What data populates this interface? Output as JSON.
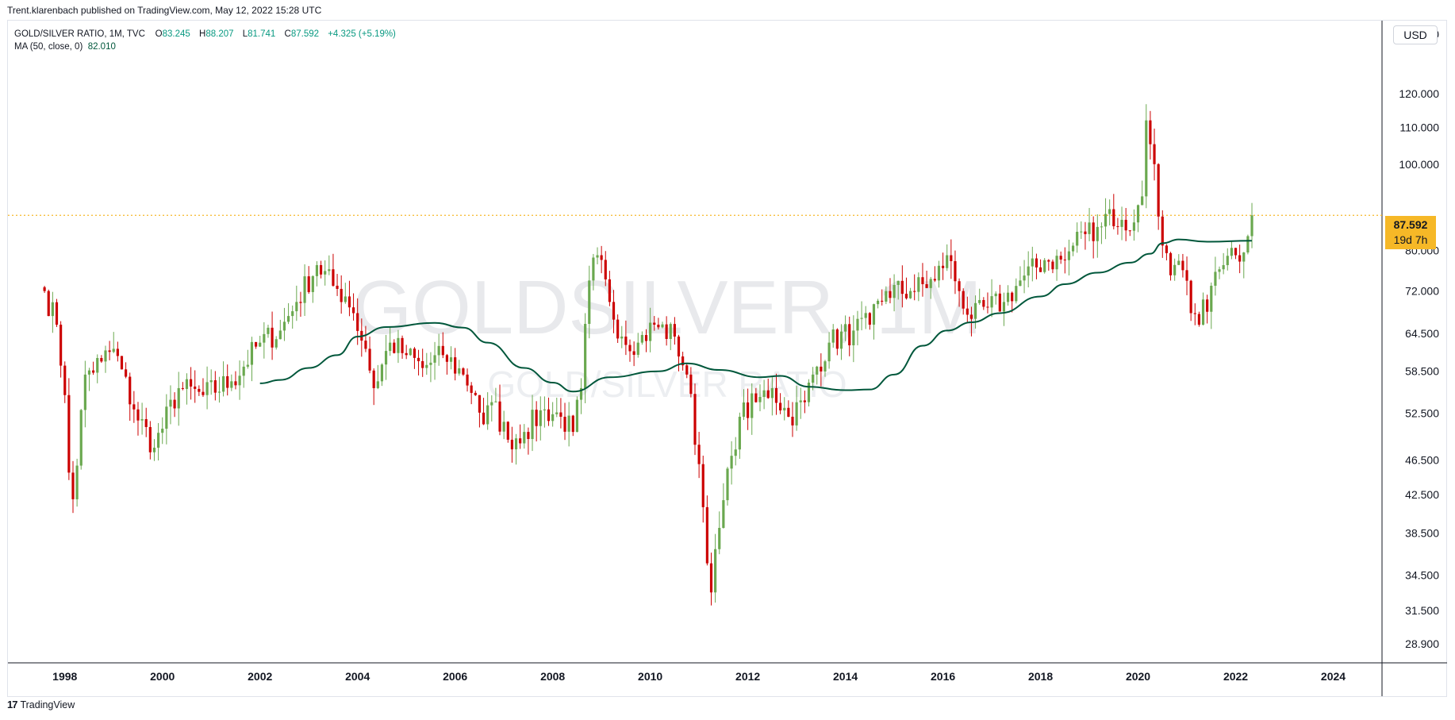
{
  "header": {
    "published": "Trent.klarenbach published on TradingView.com, May 12, 2022 15:28 UTC"
  },
  "legend": {
    "symbol": "GOLD/SILVER RATIO, 1M, TVC",
    "open_label": "O",
    "open": "83.245",
    "high_label": "H",
    "high": "88.207",
    "low_label": "L",
    "low": "81.741",
    "close_label": "C",
    "close": "87.592",
    "change": "+4.325 (+5.19%)",
    "ma_label": "MA (50, close, 0)",
    "ma_value": "82.010"
  },
  "currency_button": "USD",
  "last_price": {
    "value": "87.592",
    "countdown": "19d 7h"
  },
  "watermark": {
    "main": "GOLDSILVER, 1M",
    "sub": "GOLD/SILVER RATIO"
  },
  "footer": {
    "brand": "TradingView",
    "logo": "17"
  },
  "colors": {
    "up": "#6aa84f",
    "down": "#cc0000",
    "ma": "#00573b",
    "price_line": "#f6b827",
    "grid_border": "#e0e3eb"
  },
  "chart_data": {
    "type": "candlestick",
    "title": "GOLD/SILVER RATIO, 1M, TVC",
    "scale": "log",
    "ylim": [
      27.5,
      145
    ],
    "x_range": [
      "1996-11",
      "2025-01"
    ],
    "y_ticks": [
      140,
      120,
      110,
      100,
      80,
      72,
      64.5,
      58.5,
      52.5,
      46.5,
      42.5,
      38.5,
      34.5,
      31.5,
      28.9
    ],
    "y_tick_labels": [
      "140.000",
      "120.000",
      "110.000",
      "100.000",
      "80.000",
      "72.000",
      "64.500",
      "58.500",
      "52.500",
      "46.500",
      "42.500",
      "38.500",
      "34.500",
      "31.500",
      "28.900"
    ],
    "x_ticks": [
      "1998",
      "2000",
      "2002",
      "2004",
      "2006",
      "2008",
      "2010",
      "2012",
      "2014",
      "2016",
      "2018",
      "2020",
      "2022",
      "2024"
    ],
    "grid": false,
    "current_price": 87.592,
    "anchors": [
      [
        "1997-08",
        72
      ],
      [
        "1997-11",
        66
      ],
      [
        "1998-01",
        55
      ],
      [
        "1998-02",
        45
      ],
      [
        "1998-03",
        42
      ],
      [
        "1998-06",
        58
      ],
      [
        "1998-10",
        60
      ],
      [
        "1999-01",
        62
      ],
      [
        "1999-06",
        53
      ],
      [
        "1999-11",
        48
      ],
      [
        "2000-05",
        56
      ],
      [
        "2000-11",
        55
      ],
      [
        "2001-06",
        57
      ],
      [
        "2002-01",
        63
      ],
      [
        "2002-06",
        65
      ],
      [
        "2002-10",
        70
      ],
      [
        "2003-03",
        77
      ],
      [
        "2003-07",
        73
      ],
      [
        "2003-10",
        71
      ],
      [
        "2003-12",
        68
      ],
      [
        "2004-03",
        62
      ],
      [
        "2004-05",
        56
      ],
      [
        "2004-09",
        63
      ],
      [
        "2005-01",
        61
      ],
      [
        "2005-05",
        59
      ],
      [
        "2005-10",
        61
      ],
      [
        "2006-03",
        58
      ],
      [
        "2006-06",
        55
      ],
      [
        "2006-08",
        51
      ],
      [
        "2006-10",
        54
      ],
      [
        "2007-02",
        49
      ],
      [
        "2007-06",
        50
      ],
      [
        "2007-11",
        53
      ],
      [
        "2008-03",
        52
      ],
      [
        "2008-06",
        50
      ],
      [
        "2008-08",
        56
      ],
      [
        "2008-10",
        74
      ],
      [
        "2008-12",
        79
      ],
      [
        "2009-03",
        70
      ],
      [
        "2009-06",
        64
      ],
      [
        "2009-10",
        63
      ],
      [
        "2010-02",
        66
      ],
      [
        "2010-07",
        64
      ],
      [
        "2010-10",
        58
      ],
      [
        "2011-01",
        46
      ],
      [
        "2011-04",
        33
      ],
      [
        "2011-06",
        39
      ],
      [
        "2011-09",
        47
      ],
      [
        "2011-11",
        52
      ],
      [
        "2012-03",
        54
      ],
      [
        "2012-07",
        56
      ],
      [
        "2012-11",
        52
      ],
      [
        "2013-03",
        54
      ],
      [
        "2013-05",
        58
      ],
      [
        "2013-09",
        63
      ],
      [
        "2014-03",
        65
      ],
      [
        "2014-07",
        66
      ],
      [
        "2014-11",
        72
      ],
      [
        "2015-05",
        72
      ],
      [
        "2015-11",
        74
      ],
      [
        "2016-02",
        79
      ],
      [
        "2016-05",
        72
      ],
      [
        "2016-08",
        67
      ],
      [
        "2016-12",
        69
      ],
      [
        "2017-04",
        70
      ],
      [
        "2017-08",
        74
      ],
      [
        "2018-02",
        78
      ],
      [
        "2018-07",
        78
      ],
      [
        "2018-11",
        84
      ],
      [
        "2019-03",
        85
      ],
      [
        "2019-06",
        89
      ],
      [
        "2019-08",
        85
      ],
      [
        "2019-12",
        86
      ],
      [
        "2020-02",
        92
      ],
      [
        "2020-03",
        112
      ],
      [
        "2020-05",
        100
      ],
      [
        "2020-07",
        81
      ],
      [
        "2020-09",
        75
      ],
      [
        "2020-12",
        76
      ],
      [
        "2021-02",
        68
      ],
      [
        "2021-04",
        66
      ],
      [
        "2021-07",
        73
      ],
      [
        "2021-10",
        77
      ],
      [
        "2022-01",
        79
      ],
      [
        "2022-04",
        83
      ],
      [
        "2022-05",
        87.592
      ]
    ],
    "ma": {
      "label": "MA (50, close, 0)",
      "points": [
        [
          "2002-01",
          56.7
        ],
        [
          "2002-06",
          57.2
        ],
        [
          "2003-01",
          59
        ],
        [
          "2003-08",
          61
        ],
        [
          "2004-01",
          64
        ],
        [
          "2004-08",
          65.6
        ],
        [
          "2005-08",
          66.3
        ],
        [
          "2006-03",
          65.5
        ],
        [
          "2006-09",
          63
        ],
        [
          "2007-06",
          59
        ],
        [
          "2008-01",
          56.8
        ],
        [
          "2008-06",
          55.5
        ],
        [
          "2009-03",
          57.6
        ],
        [
          "2010-03",
          58.5
        ],
        [
          "2010-10",
          59.7
        ],
        [
          "2011-06",
          58.7
        ],
        [
          "2012-04",
          57.6
        ],
        [
          "2012-09",
          57.8
        ],
        [
          "2013-04",
          56.2
        ],
        [
          "2014-01",
          55.7
        ],
        [
          "2014-07",
          55.8
        ],
        [
          "2015-01",
          58
        ],
        [
          "2015-08",
          62.5
        ],
        [
          "2016-02",
          65
        ],
        [
          "2016-08",
          66.4
        ],
        [
          "2017-03",
          68
        ],
        [
          "2018-01",
          71
        ],
        [
          "2018-07",
          73.3
        ],
        [
          "2019-03",
          75.5
        ],
        [
          "2019-11",
          77.5
        ],
        [
          "2020-04",
          79.3
        ],
        [
          "2020-07",
          81.5
        ],
        [
          "2020-11",
          82.3
        ],
        [
          "2021-06",
          81.8
        ],
        [
          "2022-05",
          82.01
        ]
      ]
    }
  }
}
